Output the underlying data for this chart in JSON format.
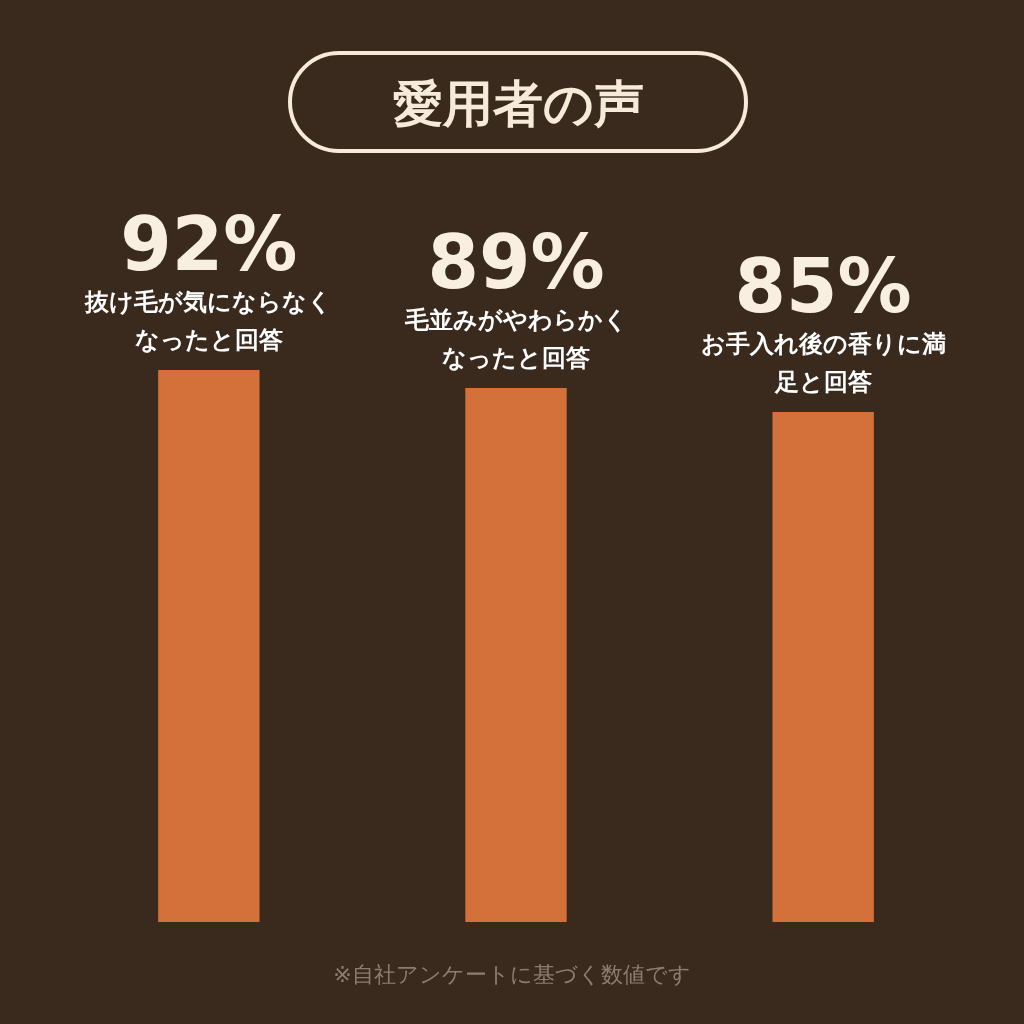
{
  "chart_data": {
    "type": "bar",
    "title": "愛用者の声",
    "categories": [
      "抜け毛が気にならなくなったと回答",
      "毛並みがやわらかくなったと回答",
      "お手入れ後の香りに満足と回答"
    ],
    "values": [
      92,
      89,
      85
    ],
    "value_labels": [
      "92%",
      "89%",
      "85%"
    ],
    "color": "#d4703a",
    "tick_labels": false,
    "annotations": [
      "※自社アンケートに基づく数値です"
    ]
  }
}
